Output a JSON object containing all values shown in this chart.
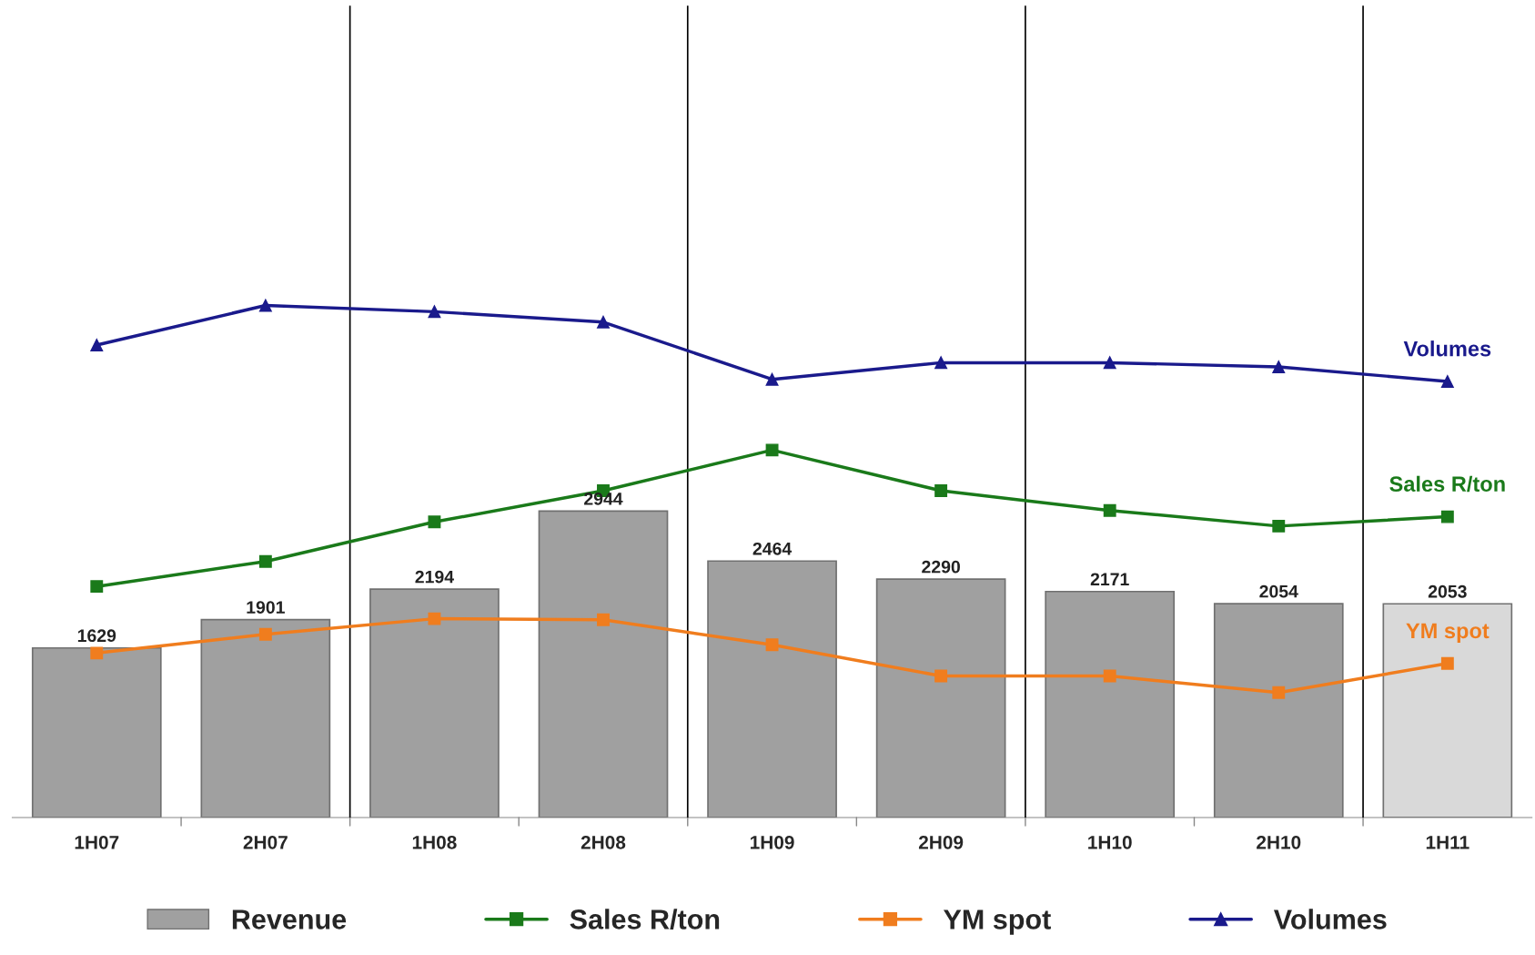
{
  "chart_data": {
    "type": "bar",
    "categories": [
      "1H07",
      "2H07",
      "1H08",
      "2H08",
      "1H09",
      "2H09",
      "1H10",
      "2H10",
      "1H11"
    ],
    "series": [
      {
        "name": "Revenue",
        "colors": [
          "#a0a0a0",
          "#a0a0a0",
          "#a0a0a0",
          "#a0a0a0",
          "#a0a0a0",
          "#a0a0a0",
          "#a0a0a0",
          "#a0a0a0",
          "#d9d9d9"
        ],
        "values": [
          1629,
          1901,
          2194,
          2944,
          2464,
          2290,
          2171,
          2054,
          2053
        ],
        "data_labels": true
      },
      {
        "name": "Sales R/ton",
        "type": "line",
        "color": "#1a7a1a",
        "marker": "square",
        "values": [
          2220,
          2460,
          2840,
          3140,
          3530,
          3140,
          2950,
          2800,
          2890
        ]
      },
      {
        "name": "YM spot",
        "type": "line",
        "color": "#f07d1e",
        "marker": "square",
        "values": [
          1580,
          1760,
          1910,
          1900,
          1660,
          1360,
          1360,
          1200,
          1480
        ]
      },
      {
        "name": "Volumes",
        "type": "line",
        "color": "#1a1a8c",
        "marker": "triangle",
        "values": [
          4540,
          4920,
          4860,
          4760,
          4210,
          4370,
          4370,
          4330,
          4190
        ]
      }
    ],
    "ylim": [
      0,
      7800
    ],
    "tick_labels": "x",
    "legend": "bottom",
    "grid": false
  }
}
